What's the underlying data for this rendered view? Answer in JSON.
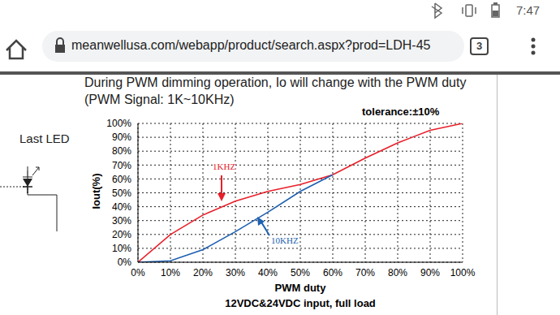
{
  "browser": {
    "url": "meanwellusa.com/webapp/product/search.aspx?prod=LDH-45",
    "time": "7:47",
    "tabs": 3
  },
  "side_label": "Last LED",
  "chart_data": {
    "type": "line",
    "title": "During PWM dimming operation, Io will change with the PWM duty",
    "subtitle": "(PWM Signal: 1K~10KHz)",
    "annotations": [
      "tolerance:±10%"
    ],
    "x_label": "PWM duty",
    "caption": "12VDC&24VDC input, full load",
    "y_label": "Iout(%)",
    "x": [
      0,
      10,
      20,
      30,
      40,
      50,
      60,
      70,
      80,
      90,
      100
    ],
    "series": [
      {
        "name": "1KHZ",
        "color": "#e8202a",
        "values": [
          0,
          20,
          34,
          44,
          51,
          56,
          63,
          75,
          86,
          95,
          100
        ]
      },
      {
        "name": "10KHZ",
        "color": "#1d5fb0",
        "values": [
          0,
          1,
          9,
          22,
          36,
          51,
          63,
          null,
          null,
          null,
          null
        ]
      }
    ],
    "xlim": [
      0,
      100
    ],
    "ylim": [
      0,
      100
    ],
    "xticks": [
      {
        "value": 0,
        "label": "0%"
      },
      {
        "value": 10,
        "label": "10%"
      },
      {
        "value": 20,
        "label": "20%"
      },
      {
        "value": 30,
        "label": "30%"
      },
      {
        "value": 40,
        "label": "40%"
      },
      {
        "value": 50,
        "label": "50%"
      },
      {
        "value": 60,
        "label": "60%"
      },
      {
        "value": 70,
        "label": "70%"
      },
      {
        "value": 80,
        "label": "80%"
      },
      {
        "value": 90,
        "label": "90%"
      },
      {
        "value": 100,
        "label": "100%"
      }
    ],
    "yticks": [
      {
        "value": 0,
        "label": "0%"
      },
      {
        "value": 10,
        "label": "10%"
      },
      {
        "value": 20,
        "label": "20%"
      },
      {
        "value": 30,
        "label": "30%"
      },
      {
        "value": 40,
        "label": "40%"
      },
      {
        "value": 50,
        "label": "50%"
      },
      {
        "value": 60,
        "label": "60%"
      },
      {
        "value": 70,
        "label": "70%"
      },
      {
        "value": 80,
        "label": "80%"
      },
      {
        "value": 90,
        "label": "90%"
      },
      {
        "value": 100,
        "label": "100%"
      }
    ],
    "grid": true
  }
}
